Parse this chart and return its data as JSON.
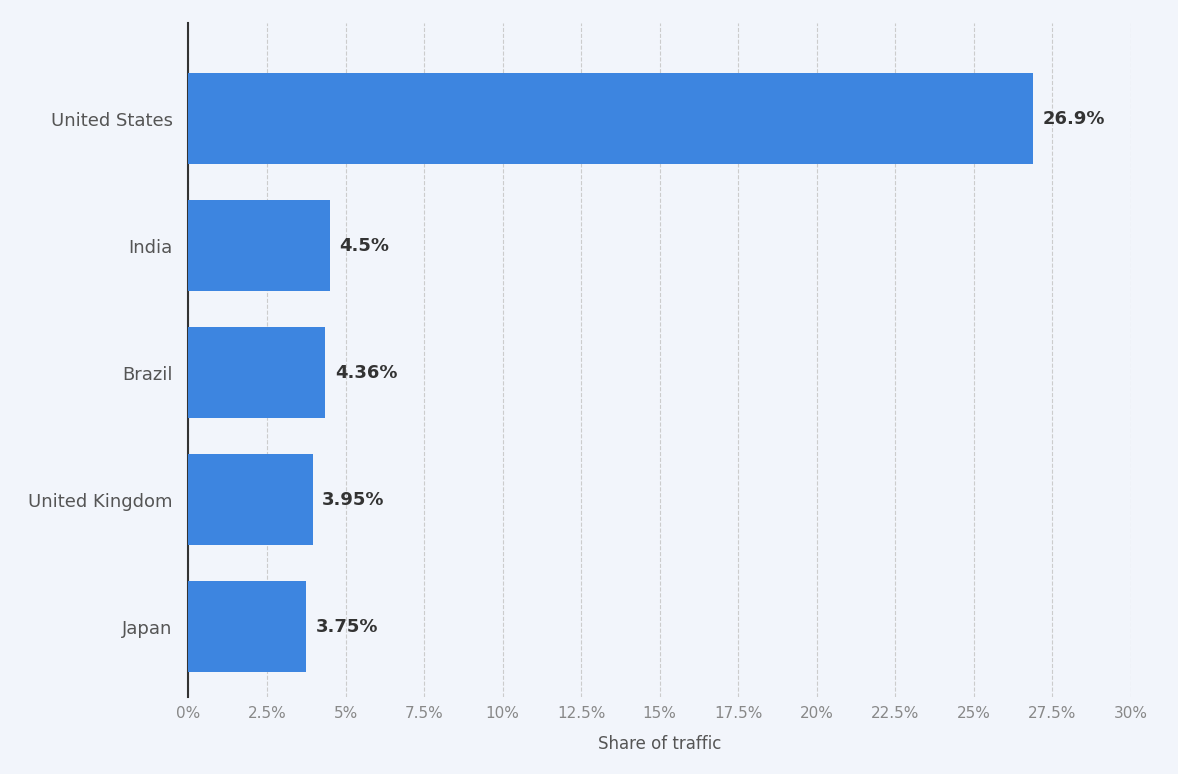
{
  "categories": [
    "Japan",
    "United Kingdom",
    "Brazil",
    "India",
    "United States"
  ],
  "values": [
    3.75,
    3.95,
    4.36,
    4.5,
    26.9
  ],
  "labels": [
    "3.75%",
    "3.95%",
    "4.36%",
    "4.5%",
    "26.9%"
  ],
  "bar_color": "#3d85e0",
  "background_color": "#f2f5fb",
  "plot_background": "#f2f5fb",
  "xlabel": "Share of traffic",
  "xlim": [
    0,
    30
  ],
  "xticks": [
    0,
    2.5,
    5,
    7.5,
    10,
    12.5,
    15,
    17.5,
    20,
    22.5,
    25,
    27.5,
    30
  ],
  "xtick_labels": [
    "0%",
    "2.5%",
    "5%",
    "7.5%",
    "10%",
    "12.5%",
    "15%",
    "17.5%",
    "20%",
    "22.5%",
    "25%",
    "27.5%",
    "30%"
  ],
  "label_fontsize": 13,
  "tick_fontsize": 11,
  "xlabel_fontsize": 12,
  "bar_height": 0.72,
  "ylim_bottom": -0.55,
  "ylim_top": 4.75
}
